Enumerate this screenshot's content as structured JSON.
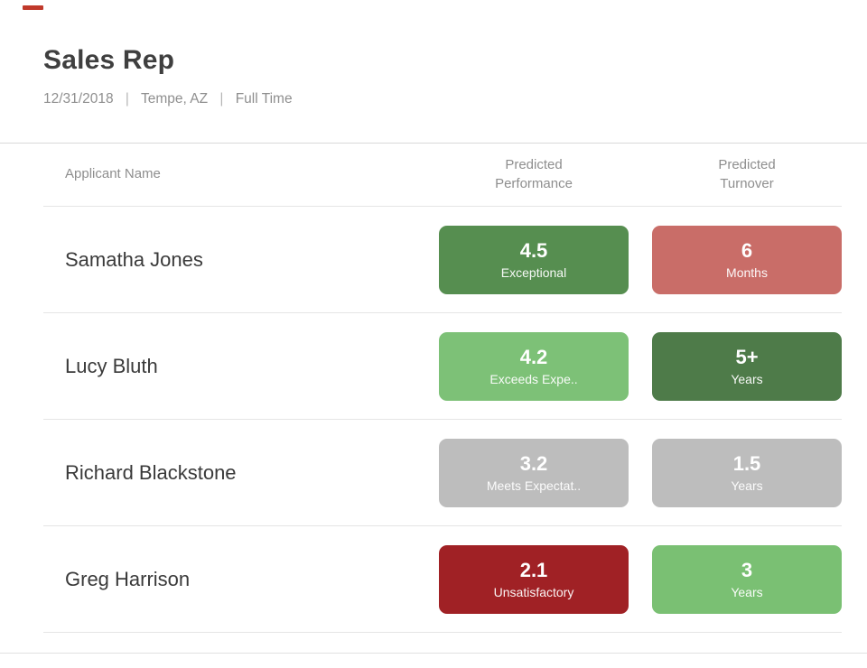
{
  "accent": {
    "top_mark_color": "#c0392b"
  },
  "header": {
    "title": "Sales Rep",
    "meta": {
      "date": "12/31/2018",
      "location": "Tempe, AZ",
      "employment_type": "Full Time",
      "separator": "|"
    }
  },
  "table": {
    "columns": [
      {
        "label": "Applicant Name"
      },
      {
        "label": "Predicted\nPerformance"
      },
      {
        "label": "Predicted\nTurnover"
      }
    ],
    "rows": [
      {
        "name": "Samatha Jones",
        "performance": {
          "value": "4.5",
          "label": "Exceptional",
          "color": "#568e50"
        },
        "turnover": {
          "value": "6",
          "label": "Months",
          "color": "#c96d68"
        }
      },
      {
        "name": "Lucy Bluth",
        "performance": {
          "value": "4.2",
          "label": "Exceeds Expe..",
          "color": "#7dc177"
        },
        "turnover": {
          "value": "5+",
          "label": "Years",
          "color": "#4e7b49"
        }
      },
      {
        "name": "Richard Blackstone",
        "performance": {
          "value": "3.2",
          "label": "Meets Expectat..",
          "color": "#bdbdbd"
        },
        "turnover": {
          "value": "1.5",
          "label": "Years",
          "color": "#bdbdbd"
        }
      },
      {
        "name": "Greg Harrison",
        "performance": {
          "value": "2.1",
          "label": "Unsatisfactory",
          "color": "#a02125"
        },
        "turnover": {
          "value": "3",
          "label": "Years",
          "color": "#7ac073"
        }
      }
    ]
  }
}
